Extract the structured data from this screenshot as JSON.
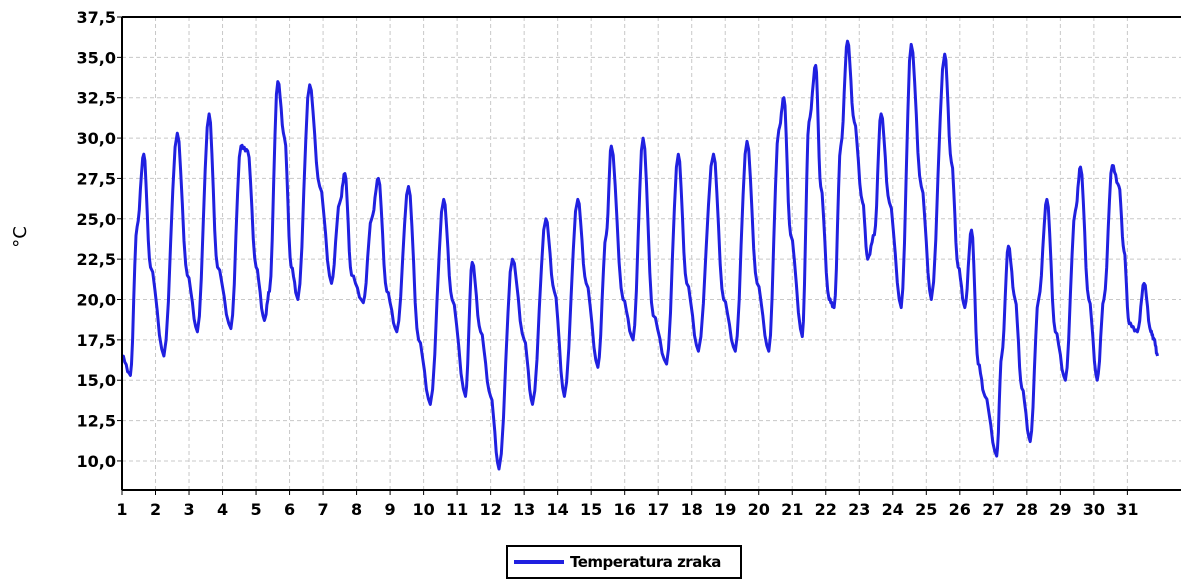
{
  "chart_data": {
    "type": "line",
    "title": "",
    "xlabel": "",
    "ylabel": "°C",
    "xlim": [
      1,
      32.6
    ],
    "ylim": [
      8.2,
      37.5
    ],
    "x_ticks": [
      "1",
      "2",
      "3",
      "4",
      "5",
      "6",
      "7",
      "8",
      "9",
      "10",
      "11",
      "12",
      "13",
      "14",
      "15",
      "16",
      "17",
      "18",
      "19",
      "20",
      "21",
      "22",
      "23",
      "24",
      "25",
      "26",
      "27",
      "28",
      "29",
      "30",
      "31"
    ],
    "y_ticks": [
      "10,0",
      "12,5",
      "15,0",
      "17,5",
      "20,0",
      "22,5",
      "25,0",
      "27,5",
      "30,0",
      "32,5",
      "35,0",
      "37,5"
    ],
    "y_tick_values": [
      10,
      12.5,
      15,
      17.5,
      20,
      22.5,
      25,
      27.5,
      30,
      32.5,
      35,
      37.5
    ],
    "grid": true,
    "legend_position": "bottom-center",
    "color": "#2020e0",
    "series": [
      {
        "name": "Temperatura zraka",
        "points": [
          [
            1.0,
            16.5
          ],
          [
            1.25,
            15.3
          ],
          [
            1.45,
            24.5
          ],
          [
            1.65,
            29.0
          ],
          [
            1.85,
            22.0
          ],
          [
            2.25,
            16.5
          ],
          [
            2.65,
            30.3
          ],
          [
            2.95,
            21.5
          ],
          [
            3.25,
            18.0
          ],
          [
            3.6,
            31.5
          ],
          [
            3.85,
            22.0
          ],
          [
            4.25,
            18.2
          ],
          [
            4.55,
            29.5
          ],
          [
            4.75,
            29.2
          ],
          [
            5.0,
            22.0
          ],
          [
            5.25,
            18.7
          ],
          [
            5.4,
            20.5
          ],
          [
            5.65,
            33.5
          ],
          [
            5.85,
            30.0
          ],
          [
            6.05,
            22.0
          ],
          [
            6.25,
            20.0
          ],
          [
            6.6,
            33.3
          ],
          [
            6.9,
            27.0
          ],
          [
            7.25,
            21.0
          ],
          [
            7.5,
            26.0
          ],
          [
            7.65,
            27.8
          ],
          [
            7.85,
            21.5
          ],
          [
            8.2,
            19.8
          ],
          [
            8.45,
            25.0
          ],
          [
            8.65,
            27.5
          ],
          [
            8.9,
            20.5
          ],
          [
            9.2,
            18.0
          ],
          [
            9.55,
            27.0
          ],
          [
            9.85,
            17.5
          ],
          [
            10.2,
            13.5
          ],
          [
            10.6,
            26.2
          ],
          [
            10.85,
            20.0
          ],
          [
            11.25,
            14.0
          ],
          [
            11.45,
            22.3
          ],
          [
            11.7,
            18.0
          ],
          [
            12.0,
            14.0
          ],
          [
            12.25,
            9.5
          ],
          [
            12.65,
            22.5
          ],
          [
            13.0,
            17.5
          ],
          [
            13.25,
            13.5
          ],
          [
            13.65,
            25.0
          ],
          [
            13.9,
            20.5
          ],
          [
            14.2,
            14.0
          ],
          [
            14.6,
            26.2
          ],
          [
            14.85,
            21.0
          ],
          [
            15.2,
            15.8
          ],
          [
            15.45,
            24.0
          ],
          [
            15.6,
            29.5
          ],
          [
            15.95,
            20.0
          ],
          [
            16.25,
            17.5
          ],
          [
            16.55,
            30.0
          ],
          [
            16.85,
            19.0
          ],
          [
            17.25,
            16.0
          ],
          [
            17.6,
            29.0
          ],
          [
            17.85,
            21.0
          ],
          [
            18.2,
            16.8
          ],
          [
            18.65,
            29.0
          ],
          [
            18.95,
            20.0
          ],
          [
            19.3,
            16.8
          ],
          [
            19.65,
            29.8
          ],
          [
            19.95,
            21.0
          ],
          [
            20.3,
            16.8
          ],
          [
            20.6,
            30.5
          ],
          [
            20.75,
            32.5
          ],
          [
            20.95,
            24.0
          ],
          [
            21.3,
            17.7
          ],
          [
            21.5,
            31.0
          ],
          [
            21.7,
            34.5
          ],
          [
            21.85,
            27.0
          ],
          [
            22.1,
            20.0
          ],
          [
            22.25,
            19.5
          ],
          [
            22.45,
            29.5
          ],
          [
            22.65,
            36.0
          ],
          [
            22.85,
            31.0
          ],
          [
            23.1,
            26.0
          ],
          [
            23.25,
            22.5
          ],
          [
            23.45,
            24.0
          ],
          [
            23.65,
            31.5
          ],
          [
            23.9,
            26.0
          ],
          [
            24.25,
            19.5
          ],
          [
            24.55,
            35.8
          ],
          [
            24.85,
            27.0
          ],
          [
            25.15,
            20.0
          ],
          [
            25.55,
            35.2
          ],
          [
            25.75,
            28.5
          ],
          [
            25.95,
            22.0
          ],
          [
            26.15,
            19.5
          ],
          [
            26.35,
            24.3
          ],
          [
            26.55,
            16.0
          ],
          [
            26.75,
            14.0
          ],
          [
            27.1,
            10.3
          ],
          [
            27.25,
            16.5
          ],
          [
            27.45,
            23.3
          ],
          [
            27.65,
            20.0
          ],
          [
            27.85,
            14.5
          ],
          [
            28.1,
            11.2
          ],
          [
            28.35,
            20.0
          ],
          [
            28.6,
            26.2
          ],
          [
            28.85,
            18.0
          ],
          [
            29.15,
            15.0
          ],
          [
            29.45,
            25.5
          ],
          [
            29.6,
            28.2
          ],
          [
            29.85,
            20.0
          ],
          [
            30.1,
            15.0
          ],
          [
            30.3,
            20.0
          ],
          [
            30.55,
            28.3
          ],
          [
            30.75,
            27.0
          ],
          [
            30.9,
            23.0
          ],
          [
            31.05,
            18.5
          ],
          [
            31.3,
            18.0
          ],
          [
            31.5,
            21.0
          ],
          [
            31.7,
            18.0
          ],
          [
            31.8,
            17.5
          ],
          [
            31.9,
            16.5
          ]
        ]
      }
    ]
  }
}
